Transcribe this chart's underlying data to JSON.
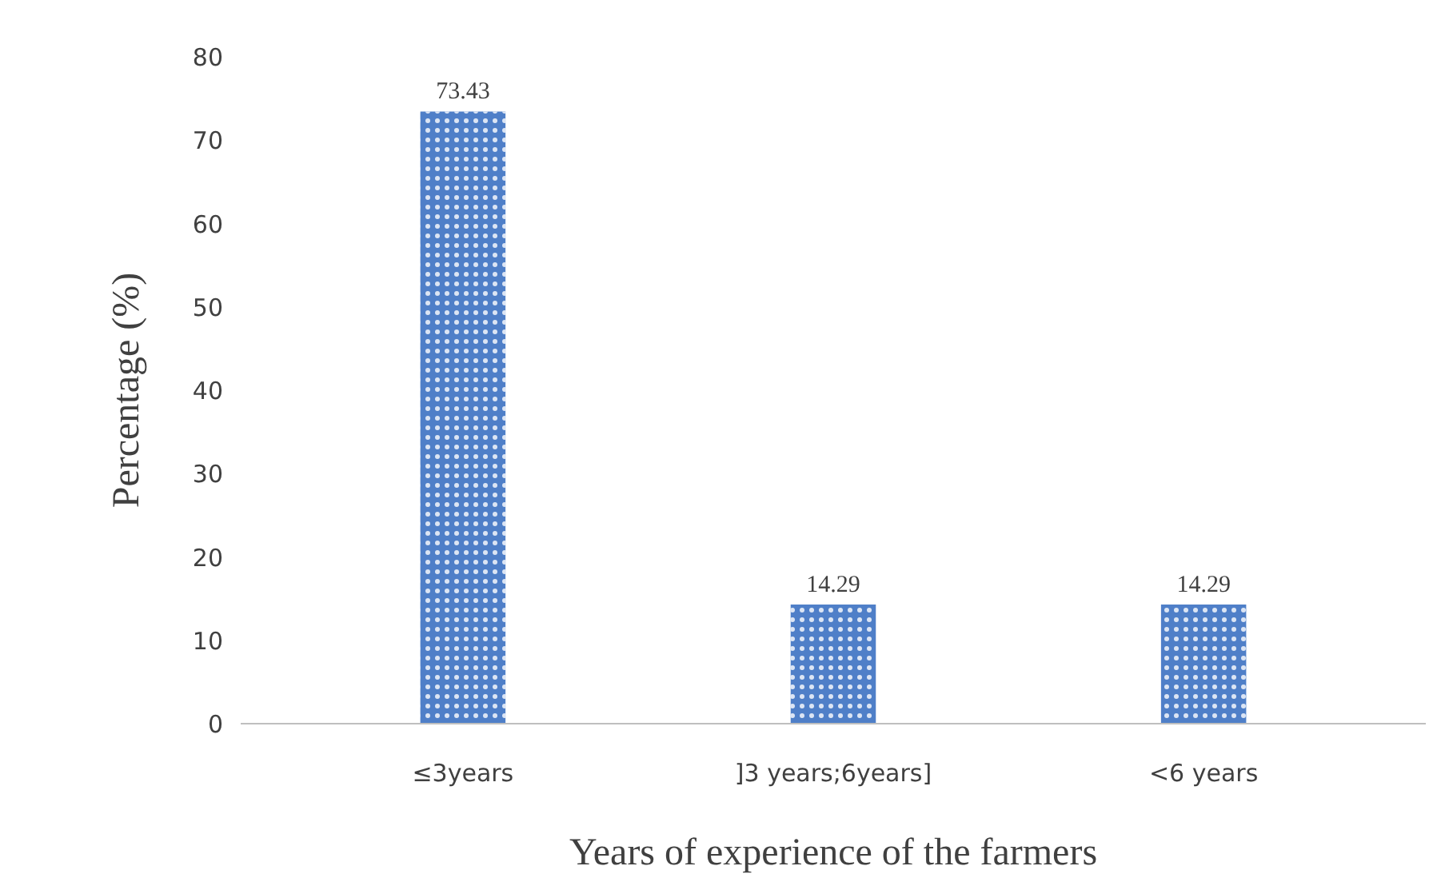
{
  "chart_data": {
    "type": "bar",
    "xlabel": "Years of experience of the farmers",
    "ylabel": "Percentage (%)",
    "categories": [
      "≤3years",
      "]3 years;6years]",
      "<6 years"
    ],
    "values": [
      73.43,
      14.29,
      14.29
    ],
    "color": "#4f7fc8",
    "ylim": [
      0,
      80
    ],
    "yticks": [
      0,
      10,
      20,
      30,
      40,
      50,
      60,
      70,
      80
    ],
    "grid": false,
    "data_labels": true
  }
}
